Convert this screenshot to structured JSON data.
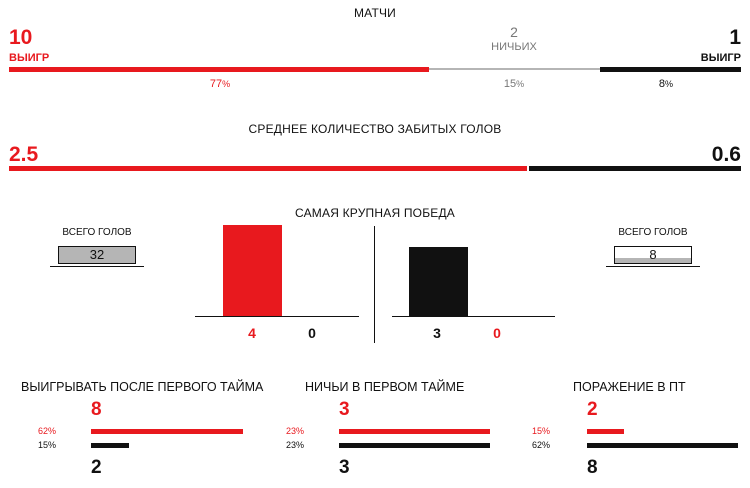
{
  "matches": {
    "title": "МАТЧИ",
    "left": {
      "value": "10",
      "label": "ВЫИГР",
      "pct_num": "77",
      "pct_sign": "%",
      "share": 77
    },
    "draw": {
      "value": "2",
      "label": "НИЧЬИХ",
      "pct_num": "15",
      "pct_sign": "%",
      "share": 15
    },
    "right": {
      "value": "1",
      "label": "ВЫИГР",
      "pct_num": "8",
      "pct_sign": "%",
      "share": 8
    }
  },
  "avg_goals": {
    "title": "СРЕДНЕЕ КОЛИЧЕСТВО ЗАБИТЫХ ГОЛОВ",
    "left": "2.5",
    "right": "0.6"
  },
  "biggest_win": {
    "title": "САМАЯ КРУПНАЯ ПОБЕДА",
    "left_total_label": "ВСЕГО ГОЛОВ",
    "left_total": "32",
    "right_total_label": "ВСЕГО ГОЛОВ",
    "right_total": "8",
    "left_score": {
      "for": "4",
      "against": "0"
    },
    "right_score": {
      "for": "3",
      "against": "0"
    }
  },
  "halftime": [
    {
      "title": "ВЫИГРЫВАТЬ ПОСЛЕ ПЕРВОГО ТАЙМА",
      "top_pct": "62%",
      "top_value": "8",
      "bottom_pct": "15%",
      "bottom_value": "2",
      "top_share": 62,
      "bottom_share": 15
    },
    {
      "title": "НИЧЬИ В ПЕРВОМ ТАЙМЕ",
      "top_pct": "23%",
      "top_value": "3",
      "bottom_pct": "23%",
      "bottom_value": "3",
      "top_share": 23,
      "bottom_share": 23
    },
    {
      "title": "ПОРАЖЕНИЕ В ПТ",
      "top_pct": "15%",
      "top_value": "2",
      "bottom_pct": "62%",
      "bottom_value": "8",
      "top_share": 15,
      "bottom_share": 62
    }
  ],
  "colors": {
    "red": "#e8191e",
    "black": "#111111",
    "grey": "#b5b5b5"
  }
}
